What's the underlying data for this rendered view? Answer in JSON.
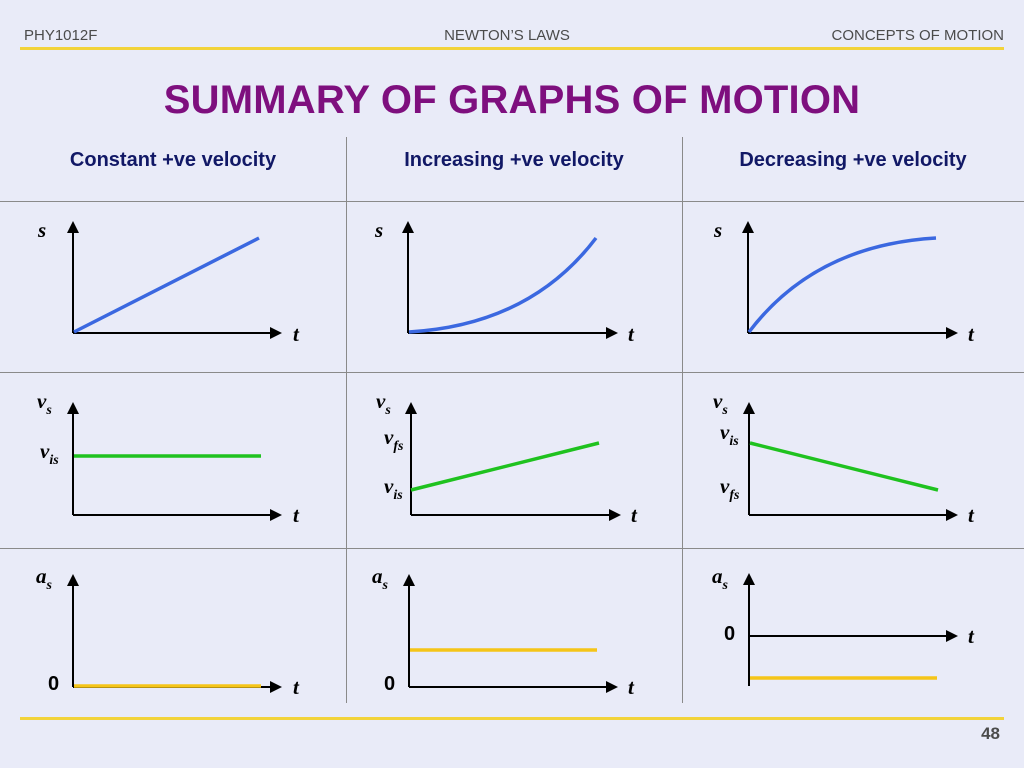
{
  "header": {
    "left": "PHY1012F",
    "center": "NEWTON’S LAWS",
    "right": "CONCEPTS OF MOTION"
  },
  "title": "SUMMARY OF GRAPHS OF MOTION",
  "columns": [
    "Constant +ve velocity",
    "Increasing +ve velocity",
    "Decreasing +ve velocity"
  ],
  "axis_labels": {
    "t": "t",
    "s": "s",
    "v": "v",
    "v_sub": "s",
    "a": "a",
    "a_sub": "s",
    "v_initial_sub": "is",
    "v_final_sub": "fs",
    "zero": "0"
  },
  "colors": {
    "background": "#e9ebf8",
    "title": "#7e0f7e",
    "column_heading": "#111866",
    "rule": "#f2d33a",
    "position_curve": "#3b68e0",
    "velocity_line": "#1fc21f",
    "acceleration_line": "#f5c518"
  },
  "chart_data": [
    {
      "type": "line",
      "quantity": "position",
      "case": "Constant +ve velocity",
      "shape": "straight line through origin, positive slope"
    },
    {
      "type": "line",
      "quantity": "position",
      "case": "Increasing +ve velocity",
      "shape": "concave-up curve from origin"
    },
    {
      "type": "line",
      "quantity": "position",
      "case": "Decreasing +ve velocity",
      "shape": "concave-down curve from origin"
    },
    {
      "type": "line",
      "quantity": "velocity",
      "case": "Constant +ve velocity",
      "shape": "horizontal line at v_is"
    },
    {
      "type": "line",
      "quantity": "velocity",
      "case": "Increasing +ve velocity",
      "shape": "line rising from v_is to v_fs"
    },
    {
      "type": "line",
      "quantity": "velocity",
      "case": "Decreasing +ve velocity",
      "shape": "line falling from v_is to v_fs"
    },
    {
      "type": "line",
      "quantity": "acceleration",
      "case": "Constant +ve velocity",
      "shape": "zero (on time axis)"
    },
    {
      "type": "line",
      "quantity": "acceleration",
      "case": "Increasing +ve velocity",
      "shape": "constant positive"
    },
    {
      "type": "line",
      "quantity": "acceleration",
      "case": "Decreasing +ve velocity",
      "shape": "constant negative (below time axis)"
    }
  ],
  "page_number": "48"
}
